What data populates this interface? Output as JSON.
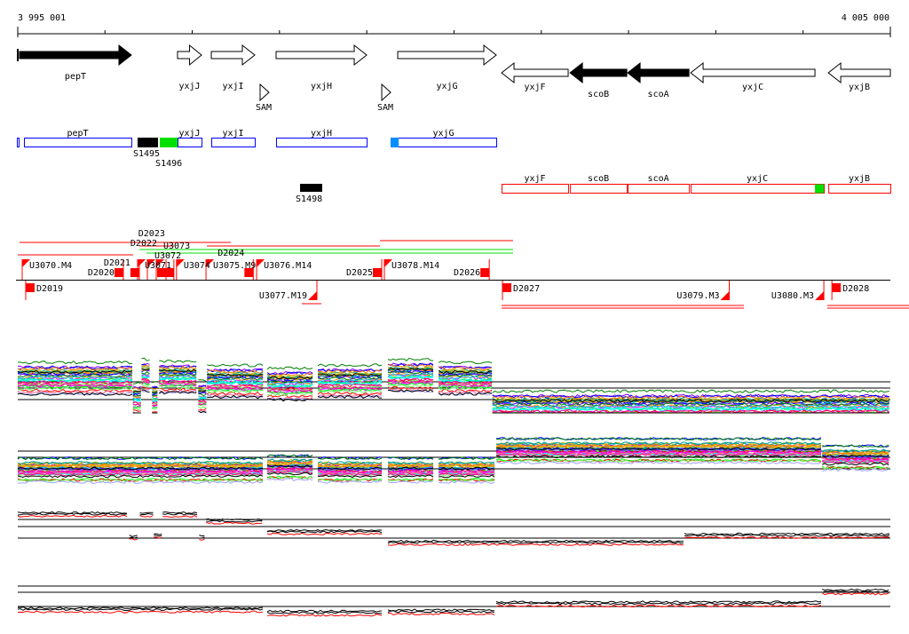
{
  "axis": {
    "start_label": "3 995 001",
    "end_label": "4 005 000",
    "start": 3995001,
    "end": 4005000,
    "tick_step": 1000
  },
  "colors": {
    "gene_filled": "#000000",
    "blue_box": "#0000ff",
    "red_box": "#ff0000",
    "green": "#00e000",
    "signal_black": "#000000",
    "signal_red": "#ff0000",
    "azure": "#0090ff"
  },
  "genes": [
    {
      "name": "pepT",
      "start": 3995021,
      "end": 3996303,
      "strand": "+",
      "filled": true
    },
    {
      "name": "yxjJ",
      "start": 3996832,
      "end": 3997107,
      "strand": "+",
      "filled": false
    },
    {
      "name": "yxjI",
      "start": 3997219,
      "end": 3997717,
      "strand": "+",
      "filled": false
    },
    {
      "name": "yxjH",
      "start": 3997961,
      "end": 3998999,
      "strand": "+",
      "filled": false
    },
    {
      "name": "yxjG",
      "start": 3999355,
      "end": 4000484,
      "strand": "+",
      "filled": false
    },
    {
      "name": "yxjF",
      "start": 4000545,
      "end": 4001308,
      "strand": "-",
      "filled": false
    },
    {
      "name": "scoB",
      "start": 4001329,
      "end": 4001980,
      "strand": "-",
      "filled": true
    },
    {
      "name": "scoA",
      "start": 4001990,
      "end": 4002692,
      "strand": "-",
      "filled": true
    },
    {
      "name": "yxjC",
      "start": 4002712,
      "end": 4004136,
      "strand": "-",
      "filled": false
    },
    {
      "name": "yxjB",
      "start": 4004289,
      "end": 4005000,
      "strand": "-",
      "filled": false
    }
  ],
  "riboswitches": [
    {
      "name": "SAM",
      "pos": 3997778
    },
    {
      "name": "SAM",
      "pos": 3999172
    }
  ],
  "transcripts_plus": [
    {
      "name": "pepT",
      "start": 3995072,
      "end": 3996303
    },
    {
      "name": "yxjJ",
      "start": 3996832,
      "end": 3997107
    },
    {
      "name": "yxjI",
      "start": 3997219,
      "end": 3997717
    },
    {
      "name": "yxjH",
      "start": 3997961,
      "end": 3998999
    },
    {
      "name": "yxjG",
      "start": 3999274,
      "end": 4000484
    }
  ],
  "transcripts_minus": [
    {
      "name": "yxjF",
      "start": 4000545,
      "end": 4001308
    },
    {
      "name": "scoB",
      "start": 4001329,
      "end": 4001980
    },
    {
      "name": "scoA",
      "start": 4001990,
      "end": 4002692
    },
    {
      "name": "yxjC",
      "start": 4002712,
      "end": 4004238
    },
    {
      "name": "yxjB",
      "start": 4004289,
      "end": 4005000
    }
  ],
  "small_features": [
    {
      "name": "S1495",
      "start": 3996374,
      "end": 3996608,
      "color": "#000000",
      "row": "plus"
    },
    {
      "name": "S1496",
      "start": 3996629,
      "end": 3996832,
      "color": "#00e000",
      "row": "plus"
    },
    {
      "name": "S1498",
      "start": 3998236,
      "end": 3998490,
      "color": "#000000",
      "row": "minus"
    }
  ],
  "segments_upper": [
    {
      "name": "U3070.M4",
      "pos": 3995052,
      "type": "U"
    },
    {
      "name": "D2020",
      "pos": 3996211,
      "type": "D"
    },
    {
      "name": "D2021",
      "pos": 3996394,
      "type": "D"
    },
    {
      "name": "U3071",
      "pos": 3996374,
      "type": "U"
    },
    {
      "name": "U3072",
      "pos": 3996486,
      "type": "U"
    },
    {
      "name": "U3073",
      "pos": 3996588,
      "type": "U"
    },
    {
      "name": "D2022",
      "pos": 3996700,
      "type": "D"
    },
    {
      "name": "D2023",
      "pos": 3996790,
      "type": "D"
    },
    {
      "name": "U3074",
      "pos": 3996820,
      "type": "U"
    },
    {
      "name": "U3075.M9",
      "pos": 3997158,
      "type": "U"
    },
    {
      "name": "D2024",
      "pos": 3997700,
      "type": "D"
    },
    {
      "name": "U3076.M14",
      "pos": 3997738,
      "type": "U"
    },
    {
      "name": "D2025",
      "pos": 3999172,
      "type": "D"
    },
    {
      "name": "U3078.M14",
      "pos": 3999202,
      "type": "U"
    },
    {
      "name": "D2026",
      "pos": 4000404,
      "type": "D"
    }
  ],
  "segments_lower": [
    {
      "name": "D2019",
      "pos": 3995092,
      "type": "D"
    },
    {
      "name": "U3077.M19",
      "pos": 3998429,
      "type": "U"
    },
    {
      "name": "D2027",
      "pos": 4000555,
      "type": "D"
    },
    {
      "name": "U3079.M3",
      "pos": 4003154,
      "type": "U"
    },
    {
      "name": "U3080.M3",
      "pos": 4004238,
      "type": "U"
    },
    {
      "name": "D2028",
      "pos": 4004330,
      "type": "D"
    }
  ],
  "profiles": [
    {
      "kind": "multi",
      "segments": [
        [
          3995001,
          3996320,
          0.6
        ],
        [
          3996320,
          3996420,
          0.25
        ],
        [
          3996420,
          3996540,
          0.65
        ],
        [
          3996540,
          3996620,
          0.25
        ],
        [
          3996620,
          3997070,
          0.62
        ],
        [
          3997070,
          3997170,
          0.28
        ],
        [
          3997170,
          3997819,
          0.55
        ],
        [
          3997860,
          3998399,
          0.5
        ],
        [
          3998440,
          3999202,
          0.55
        ],
        [
          3999243,
          3999782,
          0.65
        ],
        [
          3999823,
          4000440,
          0.6
        ],
        [
          4000440,
          4005000,
          0.1
        ]
      ]
    },
    {
      "kind": "multi",
      "segments": [
        [
          3995001,
          3997819,
          0.3
        ],
        [
          3997860,
          3998399,
          0.35
        ],
        [
          3998440,
          3999202,
          0.3
        ],
        [
          3999243,
          3999782,
          0.3
        ],
        [
          3999823,
          4000484,
          0.3
        ],
        [
          4000484,
          4004220,
          0.7
        ],
        [
          4004220,
          4005000,
          0.55
        ]
      ]
    },
    {
      "kind": "pair",
      "segments": [
        [
          3995001,
          3996280,
          0.9
        ],
        [
          3996280,
          3996400,
          0.25
        ],
        [
          3996400,
          3996560,
          0.9
        ],
        [
          3996560,
          3996660,
          0.3
        ],
        [
          3996660,
          3997080,
          0.9
        ],
        [
          3997080,
          3997160,
          0.25
        ],
        [
          3997160,
          3997819,
          0.7
        ],
        [
          3997860,
          3999202,
          0.4
        ],
        [
          3999243,
          4002640,
          0.1
        ],
        [
          4002640,
          4005000,
          0.3
        ]
      ]
    },
    {
      "kind": "pair",
      "segments": [
        [
          3995001,
          3997819,
          0.3
        ],
        [
          3997860,
          3999202,
          0.22
        ],
        [
          3999243,
          4000484,
          0.25
        ],
        [
          4000484,
          4004220,
          0.45
        ],
        [
          4004220,
          4005000,
          0.75
        ]
      ]
    }
  ]
}
